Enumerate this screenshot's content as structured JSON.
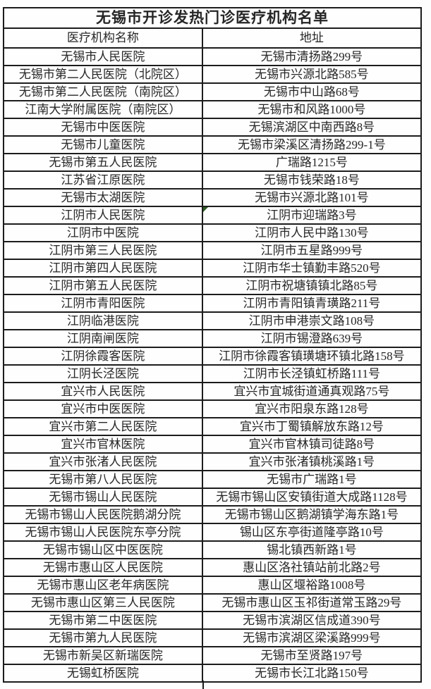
{
  "table": {
    "title": "无锡市开诊发热门诊医疗机构名单",
    "columns": [
      "医疗机构名称",
      "地址"
    ],
    "rows": [
      {
        "name": "无锡市人民医院",
        "address": "无锡市清扬路299号"
      },
      {
        "name": "无锡市第二人民医院（北院区）",
        "address": "无锡市兴源北路585号"
      },
      {
        "name": "无锡市第二人民医院（南院区）",
        "address": "无锡市中山路68号"
      },
      {
        "name": "江南大学附属医院（南院区）",
        "address": "无锡市和风路1000号"
      },
      {
        "name": "无锡市中医医院",
        "address": "无锡滨湖区中南西路8号"
      },
      {
        "name": "无锡市儿童医院",
        "address": "无锡市梁溪区清扬路299-1号"
      },
      {
        "name": "无锡市第五人民医院",
        "address": "广瑞路1215号"
      },
      {
        "name": "江苏省江原医院",
        "address": "无锡市钱荣路18号"
      },
      {
        "name": "无锡市太湖医院",
        "address": "无锡市兴源北路101号"
      },
      {
        "name": "江阴市人民医院",
        "address": "江阴市迎瑞路3号"
      },
      {
        "name": "江阴市中医院",
        "address": "江阴市人民中路130号"
      },
      {
        "name": "江阴市第三人民医院",
        "address": "江阴市五星路999号"
      },
      {
        "name": "江阴市第四人民医院",
        "address": "江阴市华士镇勤丰路520号"
      },
      {
        "name": "江阴市第五人民医院",
        "address": "江阴市祝塘镇镇北路85号"
      },
      {
        "name": "江阴市青阳医院",
        "address": "江阴市青阳镇青璜路211号"
      },
      {
        "name": "江阴临港医院",
        "address": "江阴市申港崇文路108号"
      },
      {
        "name": "江阴南闸医院",
        "address": "江阴市锡澄路639号"
      },
      {
        "name": "江阴徐霞客医院",
        "address": "江阴市徐霞客镇璜塘环镇北路158号"
      },
      {
        "name": "江阴长泾医院",
        "address": "江阴市长泾镇虹桥路111号"
      },
      {
        "name": "宜兴市人民医院",
        "address": "宜兴市宜城街道通真观路75号"
      },
      {
        "name": "宜兴市中医医院",
        "address": "宜兴市阳泉东路128号"
      },
      {
        "name": "宜兴市第二人民医院",
        "address": "宜兴市丁蜀镇解放东路12号"
      },
      {
        "name": "宜兴市官林医院",
        "address": "宜兴市官林镇司徒路8号"
      },
      {
        "name": "宜兴市张渚人民医院",
        "address": "宜兴市张渚镇桃溪路1号"
      },
      {
        "name": "无锡市第八人民医院",
        "address": "无锡市广瑞路1号"
      },
      {
        "name": "无锡市锡山人民医院",
        "address": "无锡市锡山区安镇街道大成路1128号"
      },
      {
        "name": "无锡市锡山人民医院鹅湖分院",
        "address": "无锡市锡山区鹅湖镇学海东路1号"
      },
      {
        "name": "无锡市锡山人民医院东亭分院",
        "address": "锡山区东亭街道隆亭路10号"
      },
      {
        "name": "无锡市锡山区中医医院",
        "address": "锡北镇西新路1号"
      },
      {
        "name": "无锡市惠山区人民医院",
        "address": "惠山区洛社镇站前北路2号"
      },
      {
        "name": "无锡市惠山区老年病医院",
        "address": "惠山区堰裕路1008号"
      },
      {
        "name": "无锡市惠山区第三人民医院",
        "address": "无锡市惠山区玉祁街道常玉路29号"
      },
      {
        "name": "无锡市第二中医医院",
        "address": "无锡市滨湖区信成道390号"
      },
      {
        "name": "无锡市第九人民医院",
        "address": "无锡市滨湖区梁溪路999号"
      },
      {
        "name": "无锡市新吴区新瑞医院",
        "address": "无锡市至贤路197号"
      },
      {
        "name": "无锡虹桥医院",
        "address": "无锡市长江北路150号"
      }
    ],
    "green_marker_row_index": 9,
    "colors": {
      "border": "#1c1c1c",
      "text": "#262626",
      "marker_green": "#2f5d27"
    }
  }
}
